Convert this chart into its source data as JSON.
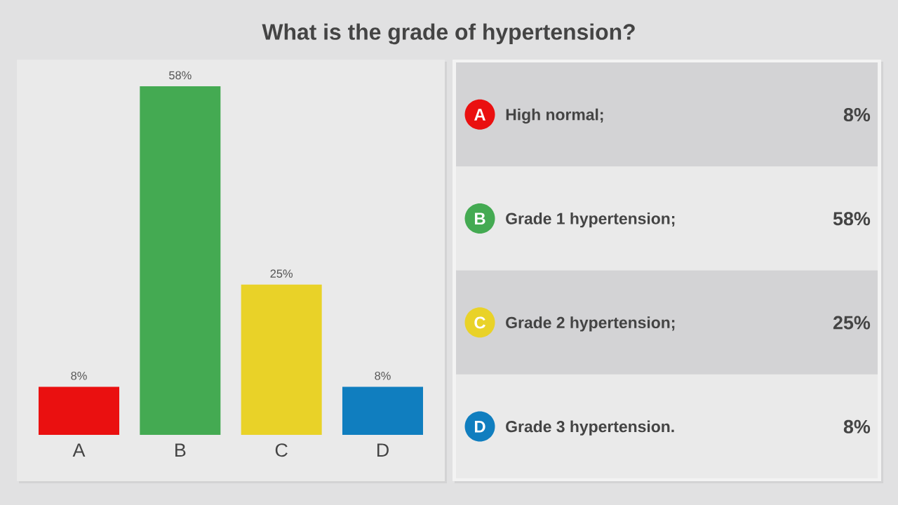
{
  "chart_data": [
    {
      "type": "bar",
      "title": "What is the grade of hypertension?",
      "categories": [
        "A",
        "B",
        "C",
        "D"
      ],
      "values": [
        8,
        58,
        25,
        8
      ],
      "colors": [
        "#ea1010",
        "#44aa52",
        "#e9d228",
        "#107ebf"
      ],
      "value_labels": [
        "8%",
        "58%",
        "25%",
        "8%"
      ]
    },
    {
      "type": "other",
      "categories": [
        "A",
        "B",
        "C",
        "D"
      ],
      "annotations": [
        "High normal;",
        "Grade 1 hypertension;",
        "Grade 2 hypertension;",
        "Grade 3 hypertension."
      ],
      "value_labels": [
        "8%",
        "58%",
        "25%",
        "8%"
      ],
      "colors": [
        "#ea1010",
        "#44aa52",
        "#e9d228",
        "#107ebf"
      ]
    }
  ]
}
